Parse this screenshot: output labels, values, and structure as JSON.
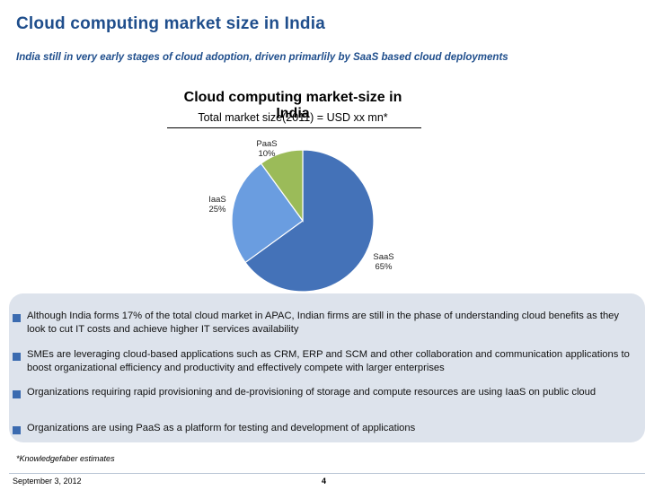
{
  "slide": {
    "title": "Cloud computing market size in India",
    "subtitle": "India still in very early stages of cloud adoption, driven primarlily by SaaS based cloud deployments"
  },
  "chart_data": {
    "type": "pie",
    "title": "Cloud computing market-size in India",
    "subtitle": "Total market size(2011) = USD xx mn*",
    "slices": [
      {
        "name": "SaaS",
        "value": 65,
        "label_pct": "65%",
        "color": "#4472b8"
      },
      {
        "name": "IaaS",
        "value": 25,
        "label_pct": "25%",
        "color": "#6a9de0"
      },
      {
        "name": "PaaS",
        "value": 10,
        "label_pct": "10%",
        "color": "#9bbb59"
      }
    ]
  },
  "bullets": [
    "Although India forms 17% of the total cloud market in APAC, Indian firms are still in the phase of understanding cloud benefits as they look to cut IT costs and achieve higher  IT services availability",
    "SMEs are leveraging cloud-based applications such as CRM, ERP and SCM and other collaboration and communication applications to boost organizational efficiency and productivity and effectively compete with larger enterprises",
    "Organizations requiring rapid provisioning and de-provisioning  of storage and compute resources are using IaaS on public cloud",
    "Organizations are using PaaS as a platform for testing and development of applications"
  ],
  "footer": {
    "footnote": "*Knowledgefaber estimates",
    "date": "September 3, 2012",
    "page_number": "4"
  },
  "colors": {
    "title_blue": "#1f4e8c",
    "panel_bg": "#dde3ec",
    "bullet_marker": "#3b6bb0"
  }
}
